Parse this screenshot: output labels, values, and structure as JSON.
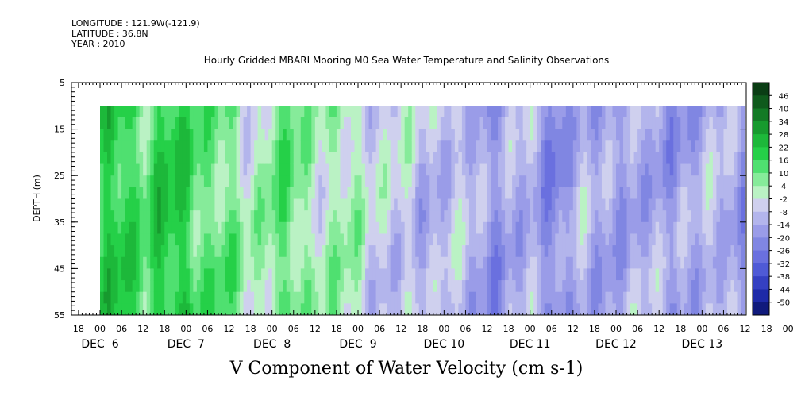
{
  "header": {
    "longitude": "LONGITUDE : 121.9W(-121.9)",
    "latitude": "LATITUDE : 36.8N",
    "year": "YEAR : 2010"
  },
  "chart_data": {
    "type": "heatmap",
    "title": "Hourly Gridded MBARI Mooring M0 Sea Water Temperature and Salinity Observations",
    "variable_label": "V Component of Water Velocity (cm s-1)",
    "ylabel": "DEPTH (m)",
    "ylim": [
      55,
      5
    ],
    "y_ticks": [
      5,
      15,
      25,
      35,
      45,
      55
    ],
    "hour_ticks": [
      "18",
      "00",
      "06",
      "12",
      "18",
      "00",
      "06",
      "12",
      "18",
      "00",
      "06",
      "12",
      "18",
      "00",
      "06",
      "12",
      "18",
      "00",
      "06",
      "12",
      "18",
      "00",
      "06",
      "12",
      "18",
      "00",
      "06",
      "12",
      "18",
      "00",
      "06",
      "12",
      "18",
      "00",
      "06",
      "12",
      "18"
    ],
    "day_labels": [
      "DEC  6",
      "DEC  7",
      "DEC  8",
      "DEC  9",
      "DEC 10",
      "DEC 11",
      "DEC 12",
      "DEC 13"
    ],
    "data_depth_range": [
      10,
      55
    ],
    "colorbar": {
      "levels": [
        48,
        46,
        40,
        34,
        28,
        22,
        16,
        10,
        4,
        -2,
        -8,
        -14,
        -20,
        -26,
        -32,
        -38,
        -44,
        -50
      ],
      "tick_labels": [
        "46",
        "40",
        "34",
        "28",
        "22",
        "16",
        "10",
        "4",
        "-2",
        "-8",
        "-14",
        "-20",
        "-26",
        "-32",
        "-38",
        "-44",
        "-50"
      ],
      "colors": [
        "#0a3d14",
        "#0f5a1c",
        "#137a25",
        "#179a2e",
        "#1db83a",
        "#25d048",
        "#4fe070",
        "#86eb9a",
        "#baf2c4",
        "#cfd0ee",
        "#b3b5ec",
        "#9a9ce8",
        "#8086e2",
        "#6a70df",
        "#4f5ad6",
        "#3540c2",
        "#1e2aa8",
        "#101a7c"
      ]
    },
    "mean_velocity_by_time": [
      {
        "time": "DEC 6 00",
        "v": 14
      },
      {
        "time": "DEC 6 06",
        "v": 22
      },
      {
        "time": "DEC 6 12",
        "v": 12
      },
      {
        "time": "DEC 6 18",
        "v": 18
      },
      {
        "time": "DEC 7 00",
        "v": 20
      },
      {
        "time": "DEC 7 06",
        "v": 9
      },
      {
        "time": "DEC 7 12",
        "v": 6
      },
      {
        "time": "DEC 7 18",
        "v": 2
      },
      {
        "time": "DEC 8 00",
        "v": 7
      },
      {
        "time": "DEC 8 06",
        "v": 8
      },
      {
        "time": "DEC 8 12",
        "v": 4
      },
      {
        "time": "DEC 8 18",
        "v": 1
      },
      {
        "time": "DEC 9 00",
        "v": 0
      },
      {
        "time": "DEC 9 06",
        "v": -4
      },
      {
        "time": "DEC 9 12",
        "v": -8
      },
      {
        "time": "DEC 9 18",
        "v": -10
      },
      {
        "time": "DEC 10 00",
        "v": -6
      },
      {
        "time": "DEC 10 06",
        "v": -12
      },
      {
        "time": "DEC 10 12",
        "v": -16
      },
      {
        "time": "DEC 10 18",
        "v": -12
      },
      {
        "time": "DEC 11 00",
        "v": -14
      },
      {
        "time": "DEC 11 06",
        "v": -20
      },
      {
        "time": "DEC 11 12",
        "v": -12
      },
      {
        "time": "DEC 11 18",
        "v": -16
      },
      {
        "time": "DEC 12 00",
        "v": -12
      },
      {
        "time": "DEC 12 06",
        "v": -14
      },
      {
        "time": "DEC 12 12",
        "v": -16
      },
      {
        "time": "DEC 12 18",
        "v": -12
      },
      {
        "time": "DEC 13 00",
        "v": -14
      },
      {
        "time": "DEC 13 06",
        "v": -10
      },
      {
        "time": "DEC 13 12",
        "v": -16
      },
      {
        "time": "DEC 13 18",
        "v": -12
      }
    ]
  }
}
